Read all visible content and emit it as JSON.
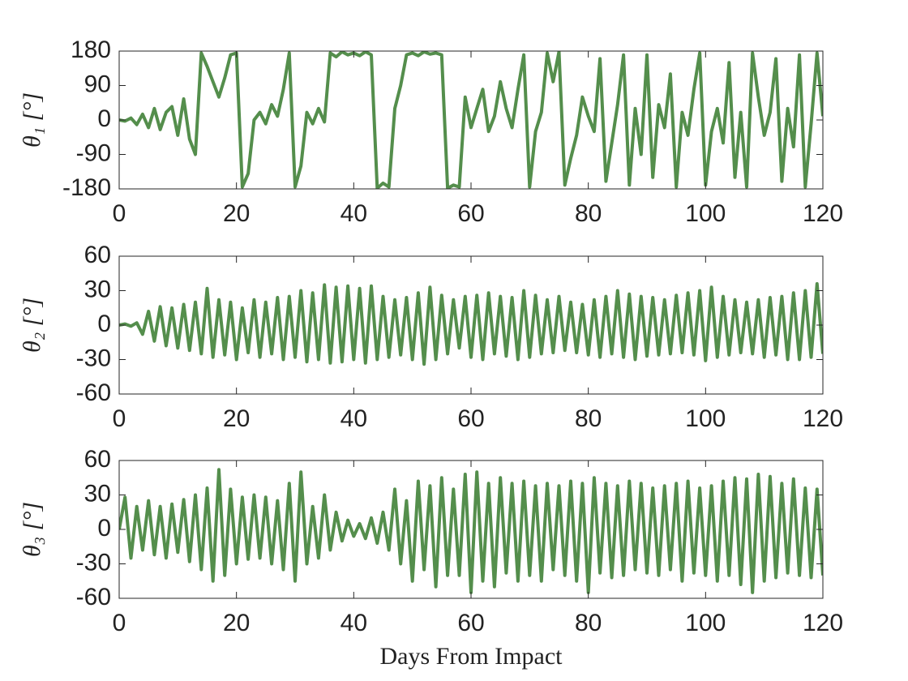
{
  "chart_data": [
    {
      "type": "line",
      "ylabel": "θ₁ [°]",
      "xlim": [
        0,
        120
      ],
      "xticks": [
        0,
        20,
        40,
        60,
        80,
        100,
        120
      ],
      "ylim": [
        -180,
        180
      ],
      "yticks": [
        -180,
        -90,
        0,
        90,
        180
      ],
      "x": [
        0,
        1,
        2,
        3,
        4,
        5,
        6,
        7,
        8,
        9,
        10,
        11,
        12,
        13,
        14,
        15,
        16,
        17,
        18,
        19,
        20,
        21,
        22,
        23,
        24,
        25,
        26,
        27,
        28,
        29,
        30,
        31,
        32,
        33,
        34,
        35,
        36,
        37,
        38,
        39,
        40,
        41,
        42,
        43,
        44,
        45,
        46,
        47,
        48,
        49,
        50,
        51,
        52,
        53,
        54,
        55,
        56,
        57,
        58,
        59,
        60,
        61,
        62,
        63,
        64,
        65,
        66,
        67,
        68,
        69,
        70,
        71,
        72,
        73,
        74,
        75,
        76,
        77,
        78,
        79,
        80,
        81,
        82,
        83,
        84,
        85,
        86,
        87,
        88,
        89,
        90,
        91,
        92,
        93,
        94,
        95,
        96,
        97,
        98,
        99,
        100,
        101,
        102,
        103,
        104,
        105,
        106,
        107,
        108,
        109,
        110,
        111,
        112,
        113,
        114,
        115,
        116,
        117,
        118,
        119,
        120
      ],
      "series": [
        {
          "color": "#548e4c",
          "values": [
            0,
            -3,
            5,
            -12,
            15,
            -20,
            30,
            -25,
            20,
            35,
            -40,
            55,
            -50,
            -90,
            175,
            140,
            100,
            60,
            110,
            170,
            175,
            -175,
            -140,
            0,
            20,
            -10,
            40,
            10,
            80,
            175,
            -175,
            -120,
            20,
            -10,
            30,
            -5,
            175,
            165,
            178,
            170,
            175,
            168,
            178,
            170,
            -178,
            -165,
            -175,
            30,
            90,
            170,
            175,
            168,
            178,
            172,
            175,
            170,
            -178,
            -170,
            -175,
            60,
            -20,
            30,
            80,
            -30,
            10,
            100,
            30,
            -20,
            80,
            170,
            -175,
            -30,
            20,
            175,
            100,
            178,
            -170,
            -100,
            -40,
            60,
            10,
            -30,
            160,
            -160,
            -60,
            40,
            170,
            -170,
            30,
            -90,
            170,
            -150,
            40,
            -20,
            120,
            -175,
            20,
            -40,
            80,
            175,
            -170,
            -30,
            30,
            -60,
            150,
            -150,
            20,
            -175,
            175,
            60,
            -40,
            20,
            160,
            -160,
            30,
            -70,
            170,
            -175,
            -10,
            175,
            10
          ]
        }
      ]
    },
    {
      "type": "line",
      "ylabel": "θ₂ [°]",
      "xlim": [
        0,
        120
      ],
      "xticks": [
        0,
        20,
        40,
        60,
        80,
        100,
        120
      ],
      "ylim": [
        -60,
        60
      ],
      "yticks": [
        -60,
        -30,
        0,
        30,
        60
      ],
      "x": [
        0,
        1,
        2,
        3,
        4,
        5,
        6,
        7,
        8,
        9,
        10,
        11,
        12,
        13,
        14,
        15,
        16,
        17,
        18,
        19,
        20,
        21,
        22,
        23,
        24,
        25,
        26,
        27,
        28,
        29,
        30,
        31,
        32,
        33,
        34,
        35,
        36,
        37,
        38,
        39,
        40,
        41,
        42,
        43,
        44,
        45,
        46,
        47,
        48,
        49,
        50,
        51,
        52,
        53,
        54,
        55,
        56,
        57,
        58,
        59,
        60,
        61,
        62,
        63,
        64,
        65,
        66,
        67,
        68,
        69,
        70,
        71,
        72,
        73,
        74,
        75,
        76,
        77,
        78,
        79,
        80,
        81,
        82,
        83,
        84,
        85,
        86,
        87,
        88,
        89,
        90,
        91,
        92,
        93,
        94,
        95,
        96,
        97,
        98,
        99,
        100,
        101,
        102,
        103,
        104,
        105,
        106,
        107,
        108,
        109,
        110,
        111,
        112,
        113,
        114,
        115,
        116,
        117,
        118,
        119,
        120
      ],
      "series": [
        {
          "color": "#548e4c",
          "values": [
            0,
            1,
            -1,
            2,
            -8,
            12,
            -14,
            16,
            -18,
            15,
            -20,
            18,
            -22,
            20,
            -25,
            32,
            -28,
            22,
            -26,
            20,
            -30,
            15,
            -24,
            22,
            -28,
            20,
            -25,
            24,
            -30,
            25,
            -28,
            30,
            -32,
            28,
            -30,
            35,
            -33,
            33,
            -32,
            34,
            -30,
            32,
            -33,
            34,
            -30,
            25,
            -28,
            22,
            -26,
            24,
            -30,
            28,
            -34,
            33,
            -30,
            26,
            -25,
            22,
            -20,
            25,
            -28,
            26,
            -30,
            28,
            -25,
            25,
            -27,
            24,
            -30,
            30,
            -28,
            26,
            -25,
            22,
            -24,
            25,
            -22,
            20,
            -24,
            18,
            -26,
            22,
            -28,
            25,
            -25,
            30,
            -28,
            27,
            -30,
            25,
            -27,
            24,
            -26,
            22,
            -25,
            26,
            -24,
            28,
            -26,
            30,
            -31,
            33,
            -28,
            25,
            -26,
            22,
            -24,
            20,
            -25,
            22,
            -28,
            24,
            -26,
            25,
            -30,
            28,
            -30,
            30,
            -28,
            36,
            -25
          ]
        }
      ]
    },
    {
      "type": "line",
      "ylabel": "θ₃ [°]",
      "xlabel": "Days From Impact",
      "xlim": [
        0,
        120
      ],
      "xticks": [
        0,
        20,
        40,
        60,
        80,
        100,
        120
      ],
      "ylim": [
        -60,
        60
      ],
      "yticks": [
        -60,
        -30,
        0,
        30,
        60
      ],
      "x": [
        0,
        1,
        2,
        3,
        4,
        5,
        6,
        7,
        8,
        9,
        10,
        11,
        12,
        13,
        14,
        15,
        16,
        17,
        18,
        19,
        20,
        21,
        22,
        23,
        24,
        25,
        26,
        27,
        28,
        29,
        30,
        31,
        32,
        33,
        34,
        35,
        36,
        37,
        38,
        39,
        40,
        41,
        42,
        43,
        44,
        45,
        46,
        47,
        48,
        49,
        50,
        51,
        52,
        53,
        54,
        55,
        56,
        57,
        58,
        59,
        60,
        61,
        62,
        63,
        64,
        65,
        66,
        67,
        68,
        69,
        70,
        71,
        72,
        73,
        74,
        75,
        76,
        77,
        78,
        79,
        80,
        81,
        82,
        83,
        84,
        85,
        86,
        87,
        88,
        89,
        90,
        91,
        92,
        93,
        94,
        95,
        96,
        97,
        98,
        99,
        100,
        101,
        102,
        103,
        104,
        105,
        106,
        107,
        108,
        109,
        110,
        111,
        112,
        113,
        114,
        115,
        116,
        117,
        118,
        119,
        120
      ],
      "series": [
        {
          "color": "#548e4c",
          "values": [
            0,
            28,
            -25,
            20,
            -18,
            25,
            -22,
            20,
            -25,
            22,
            -20,
            26,
            -28,
            30,
            -35,
            36,
            -45,
            52,
            -40,
            35,
            -30,
            28,
            -26,
            30,
            -25,
            28,
            -30,
            25,
            -35,
            40,
            -45,
            50,
            -30,
            20,
            -25,
            30,
            -18,
            15,
            -10,
            8,
            -6,
            5,
            -8,
            10,
            -12,
            15,
            -18,
            35,
            -30,
            25,
            -45,
            42,
            -35,
            38,
            -50,
            45,
            -40,
            35,
            -40,
            48,
            -55,
            50,
            -45,
            40,
            -50,
            45,
            -38,
            40,
            -45,
            42,
            -40,
            38,
            -45,
            40,
            -35,
            38,
            -40,
            42,
            -45,
            40,
            -55,
            45,
            -38,
            40,
            -42,
            38,
            -40,
            42,
            -35,
            40,
            -38,
            36,
            -40,
            38,
            -35,
            40,
            -45,
            42,
            -38,
            36,
            -40,
            38,
            -45,
            42,
            -40,
            45,
            -48,
            44,
            -55,
            48,
            -45,
            46,
            -42,
            40,
            -38,
            44,
            -40,
            36,
            -42,
            35,
            -40
          ]
        }
      ]
    }
  ]
}
